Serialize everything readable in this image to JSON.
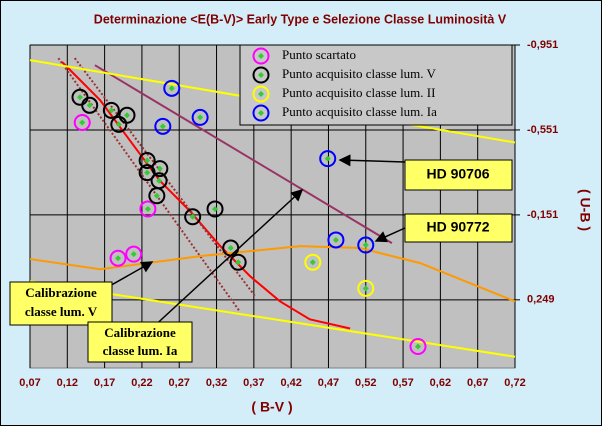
{
  "chart_data": {
    "type": "scatter",
    "title": "Determinazione <E(B-V)> Early Type e Selezione Classe Luminosità V",
    "x_label": "( B-V )",
    "y_label": "( U-B )",
    "xlim": [
      0.07,
      0.72
    ],
    "ylim": [
      -0.951,
      0.57
    ],
    "y_inverted": true,
    "grid": true,
    "xticks": [
      {
        "value": 0.07,
        "label": "0,07"
      },
      {
        "value": 0.12,
        "label": "0,12"
      },
      {
        "value": 0.17,
        "label": "0,17"
      },
      {
        "value": 0.22,
        "label": "0,22"
      },
      {
        "value": 0.27,
        "label": "0,27"
      },
      {
        "value": 0.32,
        "label": "0,32"
      },
      {
        "value": 0.37,
        "label": "0,37"
      },
      {
        "value": 0.42,
        "label": "0,42"
      },
      {
        "value": 0.47,
        "label": "0,47"
      },
      {
        "value": 0.52,
        "label": "0,52"
      },
      {
        "value": 0.57,
        "label": "0,57"
      },
      {
        "value": 0.62,
        "label": "0,62"
      },
      {
        "value": 0.67,
        "label": "0,67"
      },
      {
        "value": 0.72,
        "label": "0,72"
      }
    ],
    "yticks": [
      {
        "value": -0.951,
        "label": "-0,951"
      },
      {
        "value": -0.551,
        "label": "-0,551"
      },
      {
        "value": -0.151,
        "label": "-0,151"
      },
      {
        "value": 0.249,
        "label": "0,249"
      }
    ],
    "series": [
      {
        "name": "Punto scartato",
        "color": "#ff00ff",
        "x": [
          0.14,
          0.228,
          0.188,
          0.209,
          0.59
        ],
        "values": [
          -0.586,
          -0.179,
          0.053,
          0.034,
          0.469
        ]
      },
      {
        "name": "Punto acquisito classe lum. V",
        "color": "#000000",
        "x": [
          0.137,
          0.15,
          0.179,
          0.2,
          0.189,
          0.227,
          0.227,
          0.244,
          0.243,
          0.24,
          0.288,
          0.318,
          0.339,
          0.349
        ],
        "values": [
          -0.705,
          -0.667,
          -0.643,
          -0.62,
          -0.577,
          -0.407,
          -0.35,
          -0.369,
          -0.312,
          -0.241,
          -0.142,
          -0.179,
          0.005,
          0.072
        ]
      },
      {
        "name": "Punto acquisito classe lum. II",
        "color": "#ffff00",
        "x": [
          0.449,
          0.52
        ],
        "values": [
          0.072,
          0.195
        ]
      },
      {
        "name": "Punto acquisito classe lum. Ia",
        "color": "#0000ff",
        "x": [
          0.26,
          0.298,
          0.248,
          0.469,
          0.48,
          0.52
        ],
        "values": [
          -0.747,
          -0.61,
          -0.568,
          -0.416,
          -0.033,
          -0.009
        ]
      }
    ],
    "lines": [
      {
        "color": "#ff0000",
        "x": [
          0.113,
          0.164,
          0.204,
          0.244,
          0.284,
          0.325,
          0.365,
          0.405,
          0.445,
          0.499
        ],
        "values": [
          -0.871,
          -0.691,
          -0.501,
          -0.312,
          -0.17,
          -0.004,
          0.138,
          0.256,
          0.341,
          0.384
        ]
      },
      {
        "color": "#993333",
        "dashed": true,
        "x": [
          0.108,
          0.351
        ],
        "values": [
          -0.889,
          0.303
        ]
      },
      {
        "color": "#993333",
        "dashed": true,
        "x": [
          0.13,
          0.372
        ],
        "values": [
          -0.889,
          0.233
        ]
      },
      {
        "color": "#993366",
        "x": [
          0.157,
          0.555
        ],
        "values": [
          -0.856,
          -0.018
        ]
      },
      {
        "color": "#ffff00",
        "x": [
          0.07,
          0.72
        ],
        "values": [
          -0.88,
          -0.492
        ]
      },
      {
        "color": "#ffff00",
        "x": [
          0.07,
          0.72
        ],
        "values": [
          0.162,
          0.517
        ]
      },
      {
        "color": "#ff9900",
        "x": [
          0.07,
          0.164,
          0.298,
          0.432,
          0.512,
          0.593,
          0.72
        ],
        "values": [
          0.057,
          0.105,
          0.043,
          -0.004,
          0.005,
          0.076,
          0.256
        ]
      }
    ],
    "annotations": [
      {
        "lines": [
          "HD 90706"
        ]
      },
      {
        "lines": [
          "HD 90772"
        ]
      },
      {
        "lines": [
          "Calibrazione",
          "classe lum. V"
        ]
      },
      {
        "lines": [
          "Calibrazione",
          "classe lum. Ia"
        ]
      }
    ]
  }
}
